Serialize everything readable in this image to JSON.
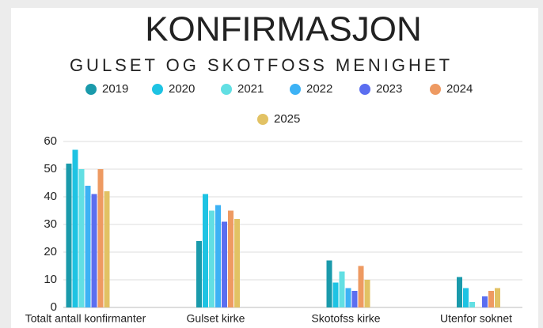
{
  "chart_data": {
    "type": "bar",
    "title": "KONFIRMASJON",
    "subtitle": "GULSET OG SKOTFOSS MENIGHET",
    "categories": [
      "Totalt antall konfirmanter",
      "Gulset kirke",
      "Skotofss kirke",
      "Utenfor soknet"
    ],
    "series": [
      {
        "name": "2019",
        "color": "#1a9aab",
        "values": [
          52,
          24,
          17,
          11
        ]
      },
      {
        "name": "2020",
        "color": "#1ec3e3",
        "values": [
          57,
          41,
          9,
          7
        ]
      },
      {
        "name": "2021",
        "color": "#62dfe3",
        "values": [
          50,
          35,
          13,
          2
        ]
      },
      {
        "name": "2022",
        "color": "#3db2f5",
        "values": [
          44,
          37,
          7,
          0
        ]
      },
      {
        "name": "2023",
        "color": "#5b6ef0",
        "values": [
          41,
          31,
          6,
          4
        ]
      },
      {
        "name": "2024",
        "color": "#ee9a62",
        "values": [
          50,
          35,
          15,
          6
        ]
      },
      {
        "name": "2025",
        "color": "#e2c264",
        "values": [
          42,
          32,
          10,
          7
        ]
      }
    ],
    "ylim": [
      0,
      60
    ],
    "yticks": [
      0,
      10,
      20,
      30,
      40,
      50,
      60
    ],
    "grid": true
  }
}
